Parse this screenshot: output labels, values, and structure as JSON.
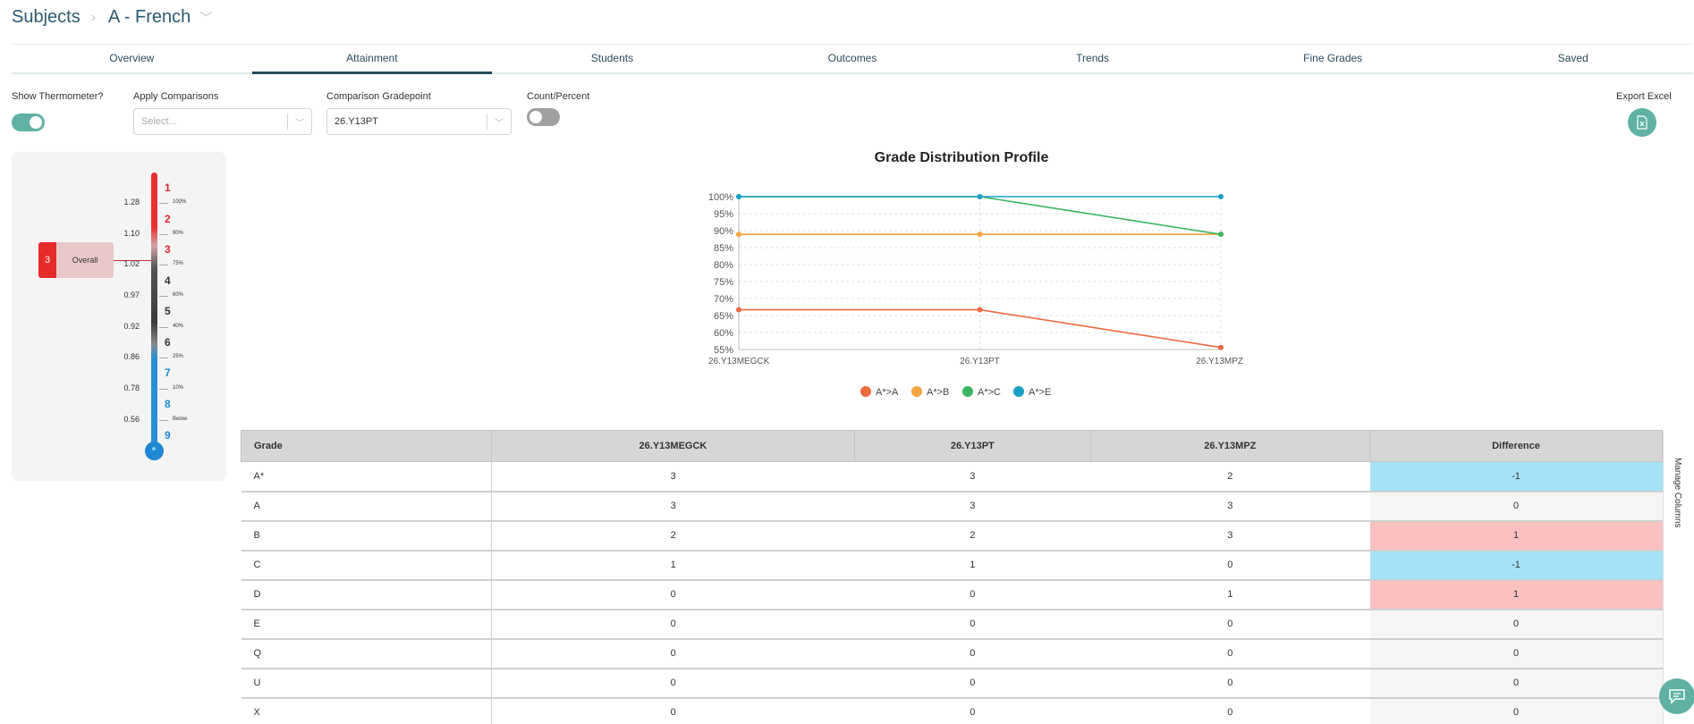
{
  "breadcrumb": {
    "subjects": "Subjects",
    "subject": "A - French"
  },
  "tabs": [
    "Overview",
    "Attainment",
    "Students",
    "Outcomes",
    "Trends",
    "Fine Grades",
    "Saved"
  ],
  "active_tab": "Attainment",
  "controls": {
    "show_thermometer_label": "Show Thermometer?",
    "show_thermometer_on": true,
    "apply_comparisons_label": "Apply Comparisons",
    "apply_comparisons_placeholder": "Select...",
    "comparison_gradepoint_label": "Comparison Gradepoint",
    "comparison_gradepoint_value": "26.Y13PT",
    "count_percent_label": "Count/Percent",
    "count_percent_on": false,
    "export_label": "Export Excel"
  },
  "thermometer": {
    "left_values": [
      "1.28",
      "1.10",
      "1.02",
      "0.97",
      "0.92",
      "0.86",
      "0.78",
      "0.56"
    ],
    "percent_labels": [
      "100%",
      "90%",
      "75%",
      "60%",
      "40%",
      "25%",
      "10%",
      "Below"
    ],
    "grades": [
      "1",
      "2",
      "3",
      "4",
      "5",
      "6",
      "7",
      "8",
      "9"
    ],
    "grade_colors": [
      "#e5242b",
      "#e5242b",
      "#e5242b",
      "#333333",
      "#333333",
      "#333333",
      "#1f88d2",
      "#1f88d2",
      "#1f88d2"
    ],
    "overall_grade": "3",
    "overall_label": "Overall"
  },
  "chart_data": {
    "type": "line",
    "title": "Grade Distribution Profile",
    "categories": [
      "26.Y13MEGCK",
      "26.Y13PT",
      "26.Y13MPZ"
    ],
    "ylim": [
      55,
      100
    ],
    "yticks": [
      "55%",
      "60%",
      "65%",
      "70%",
      "75%",
      "80%",
      "85%",
      "90%",
      "95%",
      "100%"
    ],
    "grid": true,
    "legend_position": "bottom",
    "series": [
      {
        "name": "A*>A",
        "color": "#ee6a3f",
        "values": [
          66.7,
          66.7,
          55.6
        ]
      },
      {
        "name": "A*>B",
        "color": "#f2a541",
        "values": [
          88.9,
          88.9,
          88.9
        ]
      },
      {
        "name": "A*>C",
        "color": "#3cb562",
        "values": [
          100,
          100,
          88.9
        ]
      },
      {
        "name": "A*>E",
        "color": "#1aa0c6",
        "values": [
          100,
          100,
          100
        ]
      }
    ]
  },
  "table": {
    "headers": [
      "Grade",
      "26.Y13MEGCK",
      "26.Y13PT",
      "26.Y13MPZ",
      "Difference"
    ],
    "rows": [
      [
        "A*",
        "3",
        "3",
        "2",
        "-1"
      ],
      [
        "A",
        "3",
        "3",
        "3",
        "0"
      ],
      [
        "B",
        "2",
        "2",
        "3",
        "1"
      ],
      [
        "C",
        "1",
        "1",
        "0",
        "-1"
      ],
      [
        "D",
        "0",
        "0",
        "1",
        "1"
      ],
      [
        "E",
        "0",
        "0",
        "0",
        "0"
      ],
      [
        "Q",
        "0",
        "0",
        "0",
        "0"
      ],
      [
        "U",
        "0",
        "0",
        "0",
        "0"
      ],
      [
        "X",
        "0",
        "0",
        "0",
        "0"
      ]
    ]
  },
  "manage_columns_label": "Manage Columns"
}
